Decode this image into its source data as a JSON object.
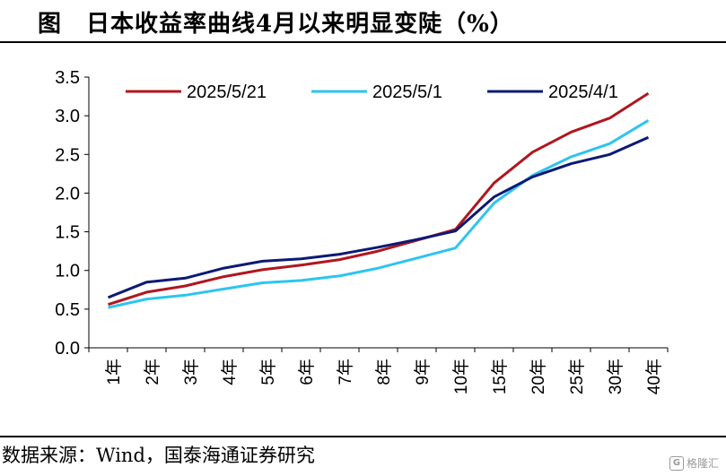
{
  "header": {
    "title": "图　日本收益率曲线4月以来明显变陡（%）"
  },
  "footer": {
    "source": "数据来源：Wind，国泰海通证券研究"
  },
  "watermark": {
    "text": "格隆汇",
    "logo": "G"
  },
  "chart_data": {
    "type": "line",
    "categories": [
      "1年",
      "2年",
      "3年",
      "4年",
      "5年",
      "6年",
      "7年",
      "8年",
      "9年",
      "10年",
      "15年",
      "20年",
      "25年",
      "30年",
      "40年"
    ],
    "ylim": [
      0,
      3.5
    ],
    "yticks": [
      "0.0",
      "0.5",
      "1.0",
      "1.5",
      "2.0",
      "2.5",
      "3.0",
      "3.5"
    ],
    "grid": false,
    "legend_position": "top",
    "series": [
      {
        "name": "2025/5/21",
        "color": "#b0161e",
        "values": [
          0.56,
          0.72,
          0.8,
          0.92,
          1.01,
          1.07,
          1.14,
          1.25,
          1.39,
          1.53,
          2.13,
          2.53,
          2.79,
          2.97,
          3.29
        ]
      },
      {
        "name": "2025/5/1",
        "color": "#2ec4f0",
        "values": [
          0.52,
          0.63,
          0.68,
          0.76,
          0.84,
          0.87,
          0.93,
          1.03,
          1.16,
          1.29,
          1.87,
          2.23,
          2.47,
          2.64,
          2.94
        ]
      },
      {
        "name": "2025/4/1",
        "color": "#0c1a73",
        "values": [
          0.65,
          0.85,
          0.9,
          1.03,
          1.12,
          1.15,
          1.21,
          1.3,
          1.4,
          1.51,
          1.95,
          2.21,
          2.38,
          2.5,
          2.72
        ]
      }
    ]
  }
}
